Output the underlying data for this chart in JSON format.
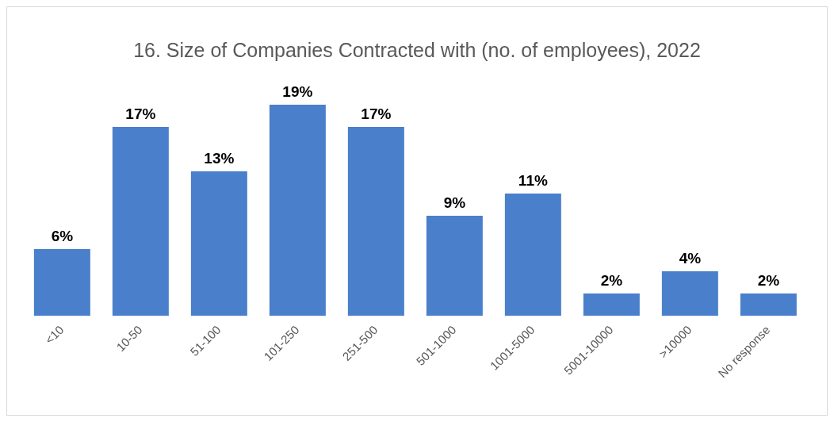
{
  "chart_data": {
    "type": "bar",
    "title": "16. Size of Companies Contracted with (no. of employees), 2022",
    "categories": [
      "<10",
      "10-50",
      "51-100",
      "101-250",
      "251-500",
      "501-1000",
      "1001-5000",
      "5001-10000",
      ">10000",
      "No response"
    ],
    "values": [
      6,
      17,
      13,
      19,
      17,
      9,
      11,
      2,
      4,
      2
    ],
    "color": "#4a7fcb",
    "value_labels": [
      "6%",
      "17%",
      "13%",
      "19%",
      "17%",
      "9%",
      "11%",
      "2%",
      "4%",
      "2%"
    ]
  }
}
